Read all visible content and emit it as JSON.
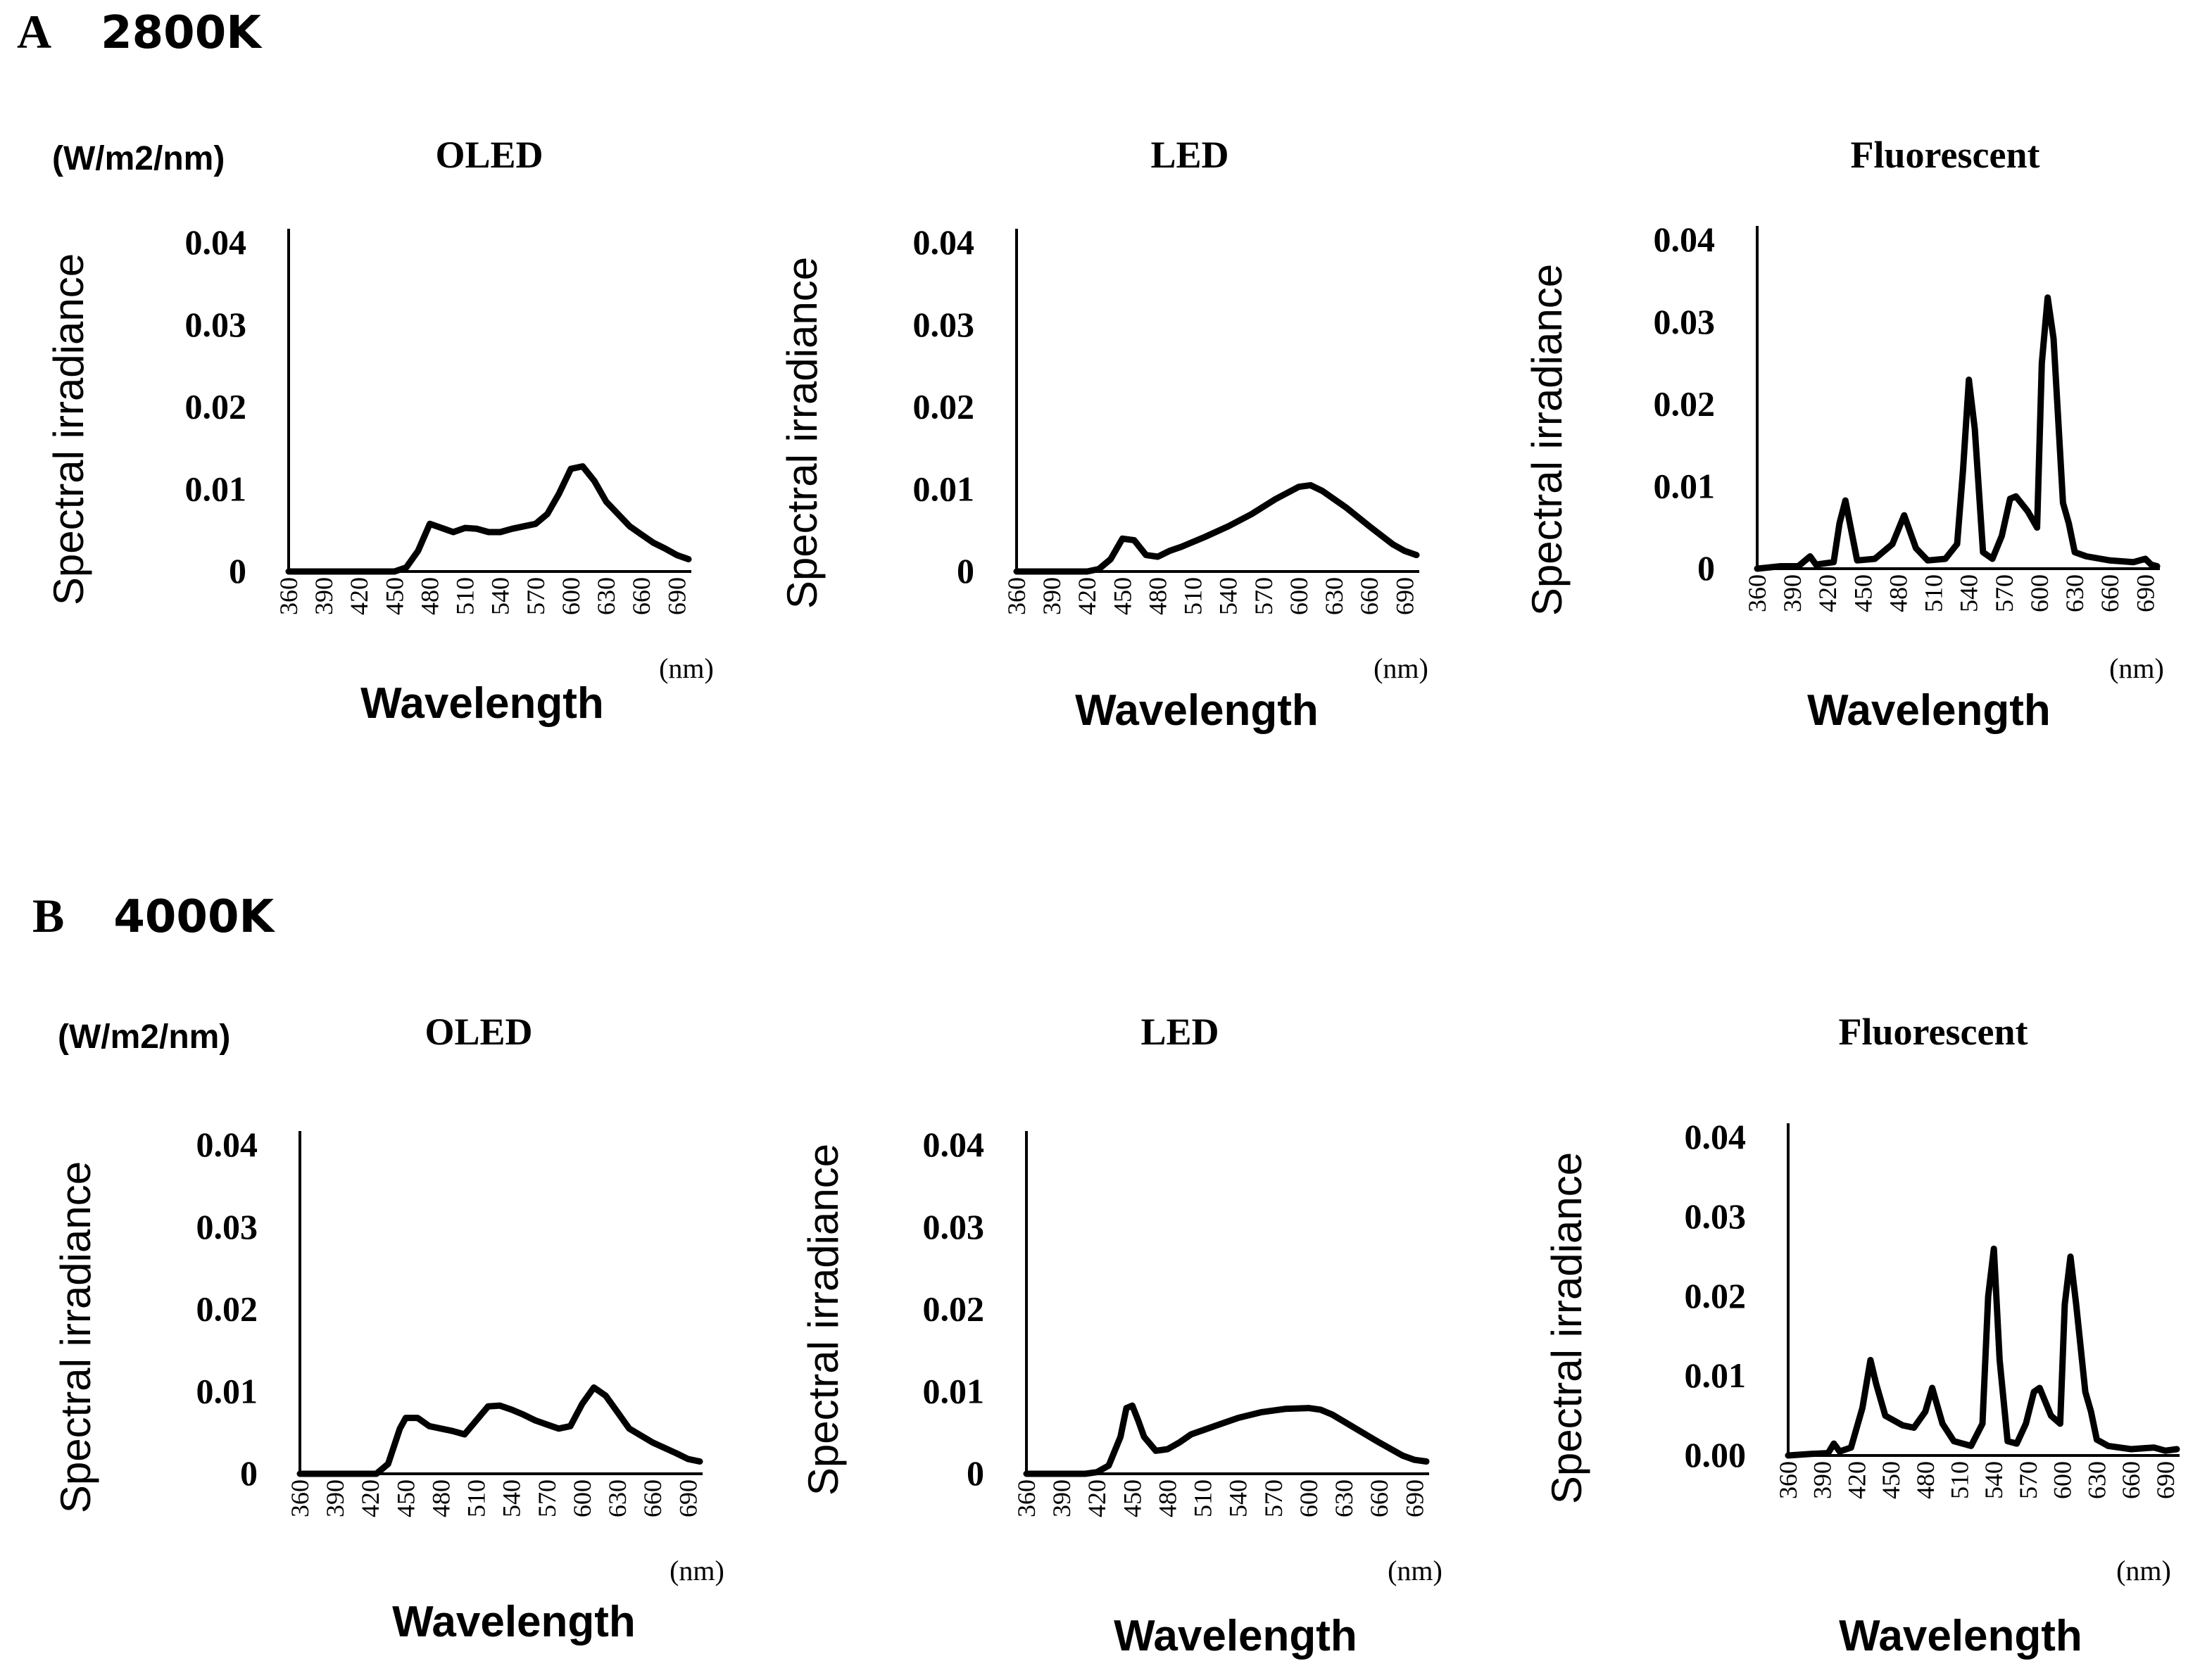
{
  "figure": {
    "panels": [
      {
        "letter": "A",
        "temperature": "2800K",
        "unit": "(W/m2/nm)"
      },
      {
        "letter": "B",
        "temperature": "4000K",
        "unit": "(W/m2/nm)"
      }
    ]
  },
  "chart_data": [
    {
      "type": "line",
      "panel": "A",
      "title": "OLED",
      "xlabel": "Wavelength",
      "ylabel": "Spectral irradiance",
      "x_unit": "(nm)",
      "xlim": [
        360,
        700
      ],
      "ylim": [
        0,
        0.04
      ],
      "x_ticks": [
        "360",
        "390",
        "420",
        "450",
        "480",
        "510",
        "540",
        "570",
        "600",
        "630",
        "660",
        "690"
      ],
      "y_ticks": [
        "0",
        "0.01",
        "0.02",
        "0.03",
        "0.04"
      ],
      "series": [
        {
          "name": "OLED 2800K",
          "x": [
            360,
            440,
            450,
            460,
            470,
            480,
            490,
            500,
            510,
            520,
            530,
            540,
            550,
            560,
            570,
            580,
            590,
            600,
            610,
            620,
            630,
            640,
            650,
            660,
            670,
            680,
            690,
            700
          ],
          "y": [
            0,
            0,
            0,
            0.0005,
            0.0025,
            0.0058,
            0.0053,
            0.0048,
            0.0053,
            0.0052,
            0.0048,
            0.0048,
            0.0052,
            0.0055,
            0.0058,
            0.007,
            0.0095,
            0.0125,
            0.0128,
            0.011,
            0.0085,
            0.007,
            0.0055,
            0.0045,
            0.0035,
            0.0028,
            0.002,
            0.0015
          ]
        }
      ]
    },
    {
      "type": "line",
      "panel": "A",
      "title": "LED",
      "xlabel": "Wavelength",
      "ylabel": "Spectral irradiance",
      "x_unit": "(nm)",
      "xlim": [
        360,
        700
      ],
      "ylim": [
        0,
        0.04
      ],
      "x_ticks": [
        "360",
        "390",
        "420",
        "450",
        "480",
        "510",
        "540",
        "570",
        "600",
        "630",
        "660",
        "690"
      ],
      "y_ticks": [
        "0",
        "0.01",
        "0.02",
        "0.03",
        "0.04"
      ],
      "series": [
        {
          "name": "LED 2800K",
          "x": [
            360,
            420,
            430,
            440,
            450,
            460,
            470,
            480,
            490,
            500,
            520,
            540,
            560,
            580,
            600,
            610,
            620,
            640,
            660,
            680,
            690,
            700
          ],
          "y": [
            0,
            0,
            0.0003,
            0.0015,
            0.004,
            0.0038,
            0.002,
            0.0018,
            0.0025,
            0.003,
            0.0042,
            0.0055,
            0.007,
            0.0088,
            0.0103,
            0.0105,
            0.0098,
            0.0078,
            0.0055,
            0.0033,
            0.0025,
            0.002
          ]
        }
      ]
    },
    {
      "type": "line",
      "panel": "A",
      "title": "Fluorescent",
      "xlabel": "Wavelength",
      "ylabel": "Spectral irradiance",
      "x_unit": "(nm)",
      "xlim": [
        360,
        700
      ],
      "ylim": [
        0,
        0.04
      ],
      "x_ticks": [
        "360",
        "390",
        "420",
        "450",
        "480",
        "510",
        "540",
        "570",
        "600",
        "630",
        "660",
        "690"
      ],
      "y_ticks": [
        "0",
        "0.01",
        "0.02",
        "0.03",
        "0.04"
      ],
      "series": [
        {
          "name": "Fluorescent 2800K",
          "x": [
            360,
            380,
            395,
            405,
            410,
            425,
            430,
            435,
            445,
            460,
            475,
            485,
            495,
            505,
            520,
            530,
            535,
            540,
            545,
            552,
            560,
            568,
            575,
            580,
            590,
            598,
            602,
            607,
            612,
            620,
            625,
            630,
            640,
            660,
            680,
            690,
            695,
            700
          ],
          "y": [
            0,
            0.0003,
            0.0003,
            0.0015,
            0.0005,
            0.0008,
            0.0055,
            0.0083,
            0.001,
            0.0012,
            0.003,
            0.0065,
            0.0025,
            0.001,
            0.0012,
            0.003,
            0.012,
            0.023,
            0.017,
            0.002,
            0.0012,
            0.004,
            0.0085,
            0.0088,
            0.007,
            0.005,
            0.025,
            0.033,
            0.028,
            0.008,
            0.0055,
            0.002,
            0.0015,
            0.001,
            0.0008,
            0.0012,
            0.0005,
            0.0003
          ]
        }
      ]
    },
    {
      "type": "line",
      "panel": "B",
      "title": "OLED",
      "xlabel": "Wavelength",
      "ylabel": "Spectral irradiance",
      "x_unit": "(nm)",
      "xlim": [
        360,
        700
      ],
      "ylim": [
        0,
        0.04
      ],
      "x_ticks": [
        "360",
        "390",
        "420",
        "450",
        "480",
        "510",
        "540",
        "570",
        "600",
        "630",
        "660",
        "690"
      ],
      "y_ticks": [
        "0",
        "0.01",
        "0.02",
        "0.03",
        "0.04"
      ],
      "series": [
        {
          "name": "OLED 4000K",
          "x": [
            360,
            425,
            435,
            445,
            450,
            460,
            470,
            480,
            490,
            500,
            510,
            520,
            530,
            540,
            550,
            560,
            570,
            580,
            590,
            600,
            610,
            620,
            630,
            640,
            660,
            680,
            690,
            700
          ],
          "y": [
            0,
            0,
            0.0012,
            0.0055,
            0.0068,
            0.0068,
            0.0058,
            0.0055,
            0.0052,
            0.0048,
            0.0065,
            0.0082,
            0.0083,
            0.0078,
            0.0072,
            0.0065,
            0.006,
            0.0055,
            0.0058,
            0.0085,
            0.0105,
            0.0095,
            0.0075,
            0.0055,
            0.0038,
            0.0025,
            0.0018,
            0.0015
          ]
        }
      ]
    },
    {
      "type": "line",
      "panel": "B",
      "title": "LED",
      "xlabel": "Wavelength",
      "ylabel": "Spectral irradiance",
      "x_unit": "(nm)",
      "xlim": [
        360,
        700
      ],
      "ylim": [
        0,
        0.04
      ],
      "x_ticks": [
        "360",
        "390",
        "420",
        "450",
        "480",
        "510",
        "540",
        "570",
        "600",
        "630",
        "660",
        "690"
      ],
      "y_ticks": [
        "0",
        "0.01",
        "0.02",
        "0.03",
        "0.04"
      ],
      "series": [
        {
          "name": "LED 4000K",
          "x": [
            360,
            410,
            420,
            430,
            440,
            445,
            450,
            455,
            460,
            470,
            480,
            490,
            500,
            520,
            540,
            560,
            580,
            600,
            610,
            620,
            640,
            660,
            680,
            690,
            700
          ],
          "y": [
            0,
            0,
            0.0002,
            0.001,
            0.0045,
            0.008,
            0.0083,
            0.0065,
            0.0045,
            0.0028,
            0.003,
            0.0038,
            0.0048,
            0.0058,
            0.0068,
            0.0075,
            0.0079,
            0.008,
            0.0078,
            0.0072,
            0.0055,
            0.0038,
            0.0022,
            0.0017,
            0.0015
          ]
        }
      ]
    },
    {
      "type": "line",
      "panel": "B",
      "title": "Fluorescent",
      "xlabel": "Wavelength",
      "ylabel": "Spectral irradiance",
      "x_unit": "(nm)",
      "xlim": [
        360,
        700
      ],
      "ylim": [
        0,
        0.04
      ],
      "x_ticks": [
        "360",
        "390",
        "420",
        "450",
        "480",
        "510",
        "540",
        "570",
        "600",
        "630",
        "660",
        "690"
      ],
      "y_ticks": [
        "0.00",
        "0.01",
        "0.02",
        "0.03",
        "0.04"
      ],
      "series": [
        {
          "name": "Fluorescent 4000K",
          "x": [
            360,
            380,
            395,
            400,
            405,
            415,
            425,
            432,
            437,
            445,
            460,
            470,
            480,
            486,
            495,
            505,
            520,
            530,
            535,
            540,
            545,
            552,
            560,
            568,
            575,
            580,
            590,
            598,
            602,
            607,
            612,
            620,
            625,
            630,
            640,
            660,
            680,
            690,
            700
          ],
          "y": [
            0,
            0.0002,
            0.0003,
            0.0015,
            0.0005,
            0.001,
            0.006,
            0.012,
            0.009,
            0.005,
            0.0038,
            0.0035,
            0.0055,
            0.0085,
            0.004,
            0.0018,
            0.0012,
            0.004,
            0.02,
            0.026,
            0.012,
            0.0018,
            0.0015,
            0.004,
            0.008,
            0.0085,
            0.005,
            0.004,
            0.019,
            0.025,
            0.019,
            0.008,
            0.0055,
            0.002,
            0.0012,
            0.0008,
            0.001,
            0.0006,
            0.0008
          ]
        }
      ]
    }
  ]
}
